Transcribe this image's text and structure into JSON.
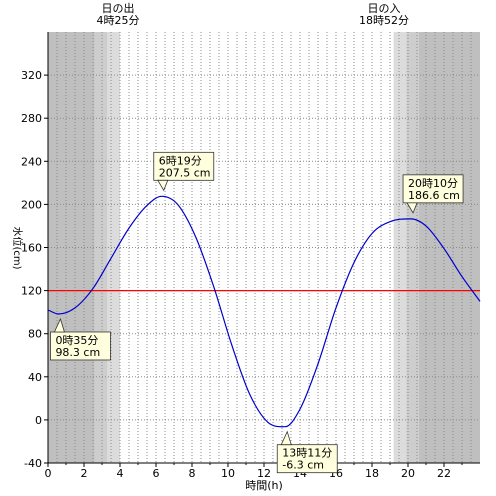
{
  "chart_data": {
    "type": "line",
    "xlabel": "時間(h)",
    "ylabel": "水位(cm)",
    "xlim": [
      0,
      24
    ],
    "ylim": [
      -40,
      360
    ],
    "x_ticks": [
      0,
      2,
      4,
      6,
      8,
      10,
      12,
      14,
      16,
      18,
      20,
      22
    ],
    "y_ticks": [
      -40,
      0,
      40,
      80,
      120,
      160,
      200,
      240,
      280,
      320
    ],
    "reference_line": {
      "value": 120,
      "color": "#ff0000"
    },
    "line_color": "#0000cc",
    "sunrise": {
      "title": "日の出",
      "time": "4時25分",
      "hour": 4.42
    },
    "sunset": {
      "title": "日の入",
      "time": "18時52分",
      "hour": 18.87
    },
    "night_shading": [
      {
        "from": 0,
        "to": 2.6,
        "color": "#bfbfbf"
      },
      {
        "from": 2.6,
        "to": 3.3,
        "color": "#cdcdcd"
      },
      {
        "from": 3.3,
        "to": 4.0,
        "color": "#dcdcdc"
      },
      {
        "from": 19.2,
        "to": 19.9,
        "color": "#dcdcdc"
      },
      {
        "from": 19.9,
        "to": 20.6,
        "color": "#cdcdcd"
      },
      {
        "from": 20.6,
        "to": 24,
        "color": "#bfbfbf"
      }
    ],
    "series": [
      {
        "x": [
          0,
          0.58,
          1.5,
          2.5,
          3.5,
          4.5,
          5.5,
          6.32,
          7.2,
          8.2,
          9.2,
          10.2,
          11.2,
          12.2,
          13.18,
          14.0,
          15.0,
          16.0,
          17.0,
          18.0,
          19.0,
          20.17,
          21.0,
          22.0,
          23.0,
          24.0
        ],
        "y": [
          102,
          98.3,
          104,
          122,
          150,
          178,
          199,
          207.5,
          200,
          170,
          124,
          70,
          24,
          -2,
          -6.3,
          10,
          52,
          104,
          146,
          173,
          184,
          186.6,
          180,
          159,
          133,
          110
        ]
      }
    ],
    "annotations": [
      {
        "time": "6時19分",
        "value": "207.5 cm",
        "x": 6.32,
        "y": 207.5,
        "placement": "above"
      },
      {
        "time": "0時35分",
        "value": "98.3 cm",
        "x": 0.58,
        "y": 98.3,
        "placement": "below"
      },
      {
        "time": "13時11分",
        "value": "-6.3 cm",
        "x": 13.18,
        "y": -6.3,
        "placement": "below"
      },
      {
        "time": "20時10分",
        "value": "186.6 cm",
        "x": 20.17,
        "y": 186.6,
        "placement": "above"
      }
    ]
  }
}
